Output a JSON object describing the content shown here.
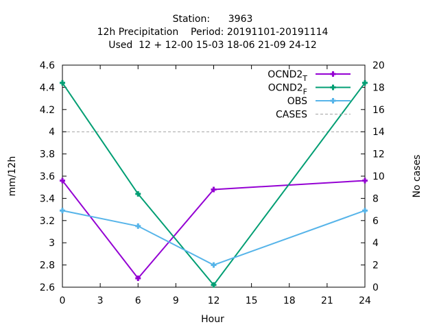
{
  "chart_data": {
    "type": "line",
    "title_lines": [
      "Station:      3963",
      "12h Precipitation    Period: 20191101-20191114",
      "Used  12 + 12-00 15-03 18-06 21-09 24-12"
    ],
    "xlabel": "Hour",
    "ylabel": "mm/12h",
    "y2label": "No cases",
    "xlim": [
      0,
      24
    ],
    "ylim": [
      2.6,
      4.6
    ],
    "y2lim": [
      0,
      20
    ],
    "xticks": [
      0,
      3,
      6,
      9,
      12,
      15,
      18,
      21,
      24
    ],
    "yticks": [
      2.6,
      2.8,
      3.0,
      3.2,
      3.4,
      3.6,
      3.8,
      4.0,
      4.2,
      4.4,
      4.6
    ],
    "ytick_labels": [
      "2.6",
      "2.8",
      "3",
      "3.2",
      "3.4",
      "3.6",
      "3.8",
      "4",
      "4.2",
      "4.4",
      "4.6"
    ],
    "y2ticks": [
      0,
      2,
      4,
      6,
      8,
      10,
      12,
      14,
      16,
      18,
      20
    ],
    "grid": false,
    "legend_position": "top-right",
    "x": [
      0,
      6,
      12,
      24
    ],
    "series": [
      {
        "name": "OCND2",
        "subscript": "T",
        "color": "#9400d3",
        "marker": "plus",
        "axis": "left",
        "values": [
          3.56,
          2.68,
          3.48,
          3.56
        ]
      },
      {
        "name": "OCND2",
        "subscript": "F",
        "color": "#009e73",
        "marker": "plus",
        "axis": "left",
        "values": [
          4.44,
          3.44,
          2.62,
          4.44
        ]
      },
      {
        "name": "OBS",
        "subscript": "",
        "color": "#56b4e9",
        "marker": "plus",
        "axis": "left",
        "values": [
          3.29,
          3.15,
          2.8,
          3.29
        ]
      },
      {
        "name": "CASES",
        "subscript": "",
        "color": "#a0a0a0",
        "marker": "none",
        "dash": true,
        "axis": "right",
        "x": [
          0,
          24
        ],
        "values": [
          14,
          14
        ]
      }
    ]
  }
}
